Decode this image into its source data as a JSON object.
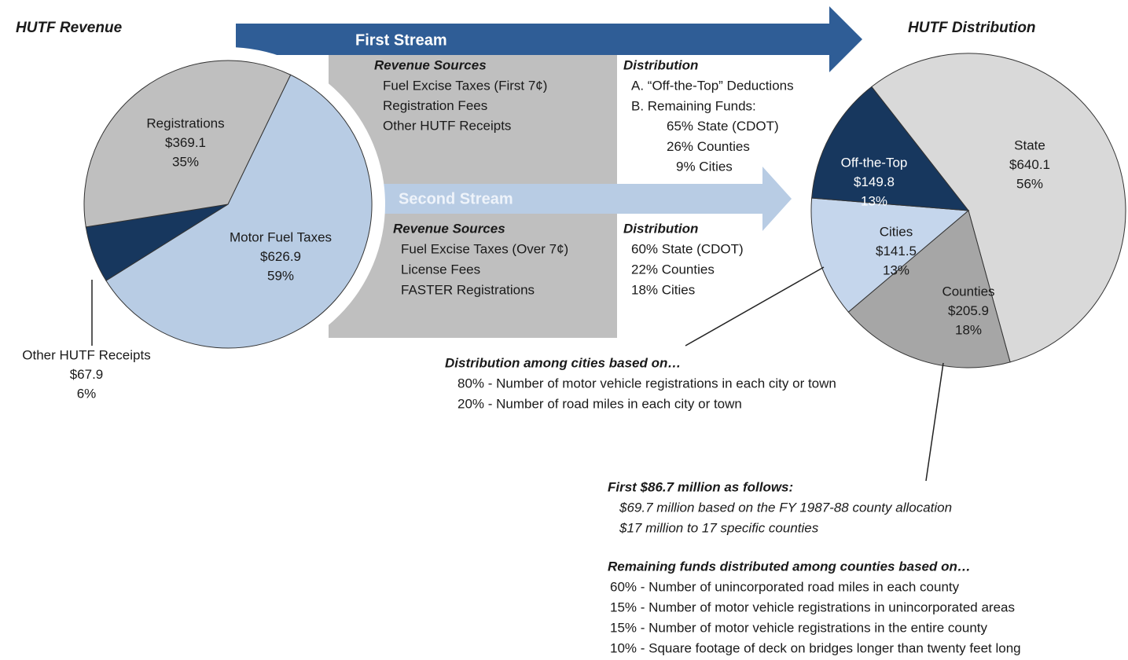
{
  "chart_data": [
    {
      "type": "pie",
      "title": "HUTF Revenue",
      "categories": [
        "Motor Fuel Taxes",
        "Other HUTF Receipts",
        "Registrations"
      ],
      "values": [
        626.9,
        67.9,
        369.1
      ],
      "value_labels": [
        "$626.9",
        "$67.9",
        "$369.1"
      ],
      "percents": [
        59,
        6,
        35
      ],
      "percent_labels": [
        "59%",
        "6%",
        "35%"
      ],
      "colors": [
        "#b8cce4",
        "#17375e",
        "#bfbfbf"
      ]
    },
    {
      "type": "pie",
      "title": "HUTF Distribution",
      "categories": [
        "State",
        "Counties",
        "Cities",
        "Off-the-Top"
      ],
      "values": [
        640.1,
        205.9,
        141.5,
        149.8
      ],
      "value_labels": [
        "$640.1",
        "$205.9",
        "$141.5",
        "$149.8"
      ],
      "percents": [
        56,
        18,
        13,
        13
      ],
      "percent_labels": [
        "56%",
        "18%",
        "13%",
        "13%"
      ],
      "colors": [
        "#d9d9d9",
        "#a6a6a6",
        "#c5d6ec",
        "#17375e"
      ]
    }
  ],
  "first_stream": {
    "label": "First Stream",
    "revenue_heading": "Revenue Sources",
    "revenue_items": [
      "Fuel Excise Taxes (First 7¢)",
      "Registration Fees",
      "Other HUTF  Receipts"
    ],
    "distribution_heading": "Distribution",
    "distribution_items": [
      "A. “Off-the-Top” Deductions",
      "B.  Remaining Funds:",
      "65% State (CDOT)",
      "26% Counties",
      "9% Cities"
    ]
  },
  "second_stream": {
    "label": "Second Stream",
    "revenue_heading": "Revenue Sources",
    "revenue_items": [
      "Fuel Excise Taxes (Over 7¢)",
      "License Fees",
      "FASTER Registrations"
    ],
    "distribution_heading": "Distribution",
    "distribution_items": [
      "60% State (CDOT)",
      "22% Counties",
      "18% Cities"
    ]
  },
  "cities_note": {
    "heading": "Distribution among cities based on…",
    "items": [
      "80% - Number  of motor vehicle registrations in each city or town",
      "20% - Number  of road miles in each city or town"
    ]
  },
  "counties_note": {
    "heading": "First $86.7 million as follows:",
    "items": [
      "$69.7 million based on the FY 1987-88 county allocation",
      "$17 million to 17 specific counties"
    ],
    "heading2": "Remaining funds distributed among counties based on…",
    "items2": [
      "60% - Number  of unincorporated road miles in each county",
      "15% - Number  of motor vehicle registrations in unincorporated areas",
      "15% - Number  of motor vehicle registrations in the entire county",
      "10% - Square footage of deck on bridges longer than twenty feet long"
    ]
  }
}
